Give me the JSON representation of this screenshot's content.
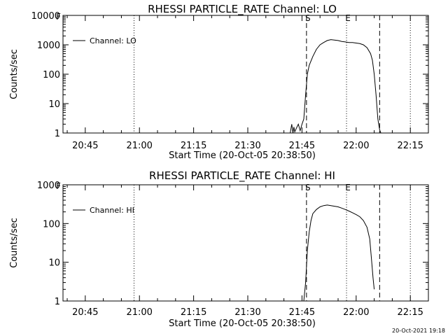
{
  "chart_data": [
    {
      "type": "line",
      "title": "RHESSI PARTICLE_RATE Channel: LO",
      "xlabel": "Start Time (20-Oct-05 20:38:50)",
      "ylabel": "Counts/sec",
      "y_scale": "log",
      "ylim": [
        1,
        10000
      ],
      "y_ticks": [
        "1",
        "10",
        "100",
        "1000",
        "10000"
      ],
      "xlim": [
        "20:38:50",
        "22:20:00"
      ],
      "x_ticks": [
        "20:45",
        "21:00",
        "21:15",
        "21:30",
        "21:45",
        "22:00",
        "22:15"
      ],
      "legend": {
        "placement": "top-left",
        "entries": [
          "Channel: LO"
        ]
      },
      "corner_label": "F",
      "marker_labels": [
        {
          "t": "21:46:15",
          "label": "S"
        },
        {
          "t": "21:57:20",
          "label": "E"
        }
      ],
      "dotted_lines": [
        "20:58:30",
        "21:57:20",
        "22:15:00"
      ],
      "dashed_lines": [
        "21:46:15",
        "22:06:30"
      ],
      "series": [
        {
          "name": "Channel: LO",
          "x": [
            "21:41:45",
            "21:42:10",
            "21:42:30",
            "21:42:45",
            "21:43:00",
            "21:43:30",
            "21:44:00",
            "21:44:30",
            "21:45:00",
            "21:45:30",
            "21:46:00",
            "21:46:30",
            "21:47:00",
            "21:48:00",
            "21:49:00",
            "21:50:00",
            "21:51:00",
            "21:52:00",
            "21:53:00",
            "21:54:00",
            "21:55:00",
            "21:56:00",
            "21:57:00",
            "21:58:00",
            "21:59:00",
            "22:00:00",
            "22:01:00",
            "22:02:00",
            "22:03:00",
            "22:04:00",
            "22:04:30",
            "22:05:00",
            "22:05:30",
            "22:06:00",
            "22:06:30",
            "22:06:50"
          ],
          "y": [
            1,
            2,
            1,
            1.6,
            1.1,
            1.5,
            2,
            1.2,
            2,
            3,
            20,
            100,
            200,
            400,
            700,
            1000,
            1200,
            1400,
            1500,
            1450,
            1400,
            1300,
            1250,
            1200,
            1200,
            1150,
            1100,
            1000,
            800,
            500,
            300,
            100,
            20,
            3,
            1.3,
            1
          ]
        }
      ]
    },
    {
      "type": "line",
      "title": "RHESSI PARTICLE_RATE Channel: HI",
      "xlabel": "Start Time (20-Oct-05 20:38:50)",
      "ylabel": "Counts/sec",
      "y_scale": "log",
      "ylim": [
        1,
        1000
      ],
      "y_ticks": [
        "1",
        "10",
        "100",
        "1000"
      ],
      "xlim": [
        "20:38:50",
        "22:20:00"
      ],
      "x_ticks": [
        "20:45",
        "21:00",
        "21:15",
        "21:30",
        "21:45",
        "22:00",
        "22:15"
      ],
      "legend": {
        "placement": "top-left",
        "entries": [
          "Channel: HI"
        ]
      },
      "corner_label": "F",
      "marker_labels": [
        {
          "t": "21:46:15",
          "label": "S"
        },
        {
          "t": "21:57:20",
          "label": "E"
        }
      ],
      "dotted_lines": [
        "20:58:30",
        "21:57:20",
        "22:15:00"
      ],
      "dashed_lines": [
        "21:46:15",
        "22:06:30"
      ],
      "series": [
        {
          "name": "Channel: HI",
          "x": [
            "21:45:30",
            "21:46:00",
            "21:46:30",
            "21:47:00",
            "21:47:30",
            "21:48:00",
            "21:49:00",
            "21:50:00",
            "21:51:00",
            "21:52:00",
            "21:53:00",
            "21:54:00",
            "21:55:00",
            "21:56:00",
            "21:57:00",
            "21:58:00",
            "21:59:00",
            "22:00:00",
            "22:01:00",
            "22:02:00",
            "22:03:00",
            "22:03:45",
            "22:04:15",
            "22:04:40",
            "22:05:00"
          ],
          "y": [
            1,
            3,
            20,
            60,
            120,
            180,
            230,
            270,
            290,
            300,
            290,
            280,
            270,
            250,
            230,
            210,
            190,
            170,
            150,
            120,
            80,
            40,
            12,
            4,
            2
          ]
        }
      ]
    }
  ],
  "footer": {
    "stamp": "20-Oct-2021 19:18"
  }
}
